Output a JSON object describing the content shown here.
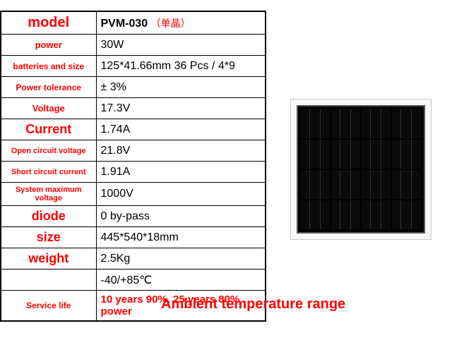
{
  "table": {
    "model": {
      "label": "model",
      "value": "PVM-030",
      "cn": "（单晶）"
    },
    "power": {
      "label": "power",
      "value": "30W"
    },
    "batteries": {
      "label": "batteries and size",
      "value": "125*41.66mm 36 Pcs / 4*9"
    },
    "tolerance": {
      "label": "Power tolerance",
      "value": "± 3%"
    },
    "voltage": {
      "label": "Voltage",
      "value": "17.3V"
    },
    "current": {
      "label": "Current",
      "value": "1.74A"
    },
    "ocv": {
      "label": "Open circuit voltage",
      "value": "21.8V"
    },
    "scc": {
      "label": "Short circuit current",
      "value": "1.91A"
    },
    "smv": {
      "label": "System maximum voltage",
      "value": "1000V"
    },
    "diode": {
      "label": "diode",
      "value": "0 by-pass"
    },
    "size": {
      "label": "size",
      "value": "445*540*18mm"
    },
    "weight": {
      "label": "weight",
      "value": "2.5Kg"
    },
    "temp": {
      "label": "",
      "value": "-40/+85℃"
    },
    "service": {
      "label": "Service life",
      "value": "10 years 90%, 25 years 80% power"
    }
  },
  "ambient_label": "Ambient temperature range",
  "colors": {
    "label_text": "#ff0000",
    "value_text": "#000000",
    "border": "#000000",
    "panel_frame": "#cccccc",
    "panel_cell": "#0a0a0a"
  },
  "font": {
    "model_label_size": 20,
    "value_size": 15,
    "small_label_size": 11,
    "ambient_size": 20
  }
}
